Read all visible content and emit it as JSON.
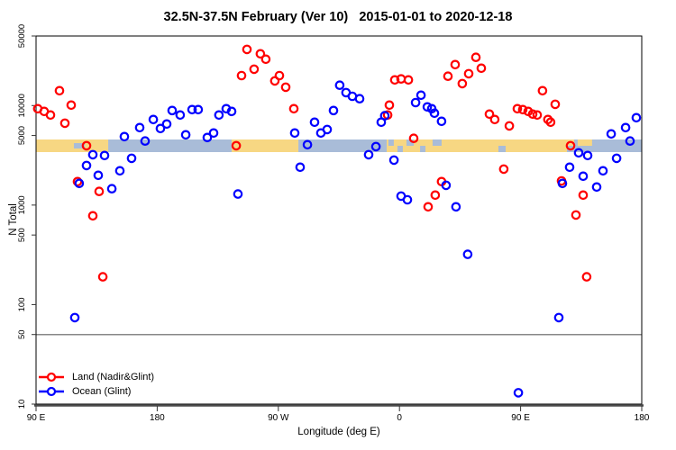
{
  "figure": {
    "title": "32.5N-37.5N February (Ver 10)   2015-01-01 to 2020-12-18"
  },
  "colors": {
    "land_series": "#ff0000",
    "ocean_series": "#0000ff",
    "band_land": "#f7d783",
    "band_ocean": "#a9bcd8",
    "ref_line": "#878787",
    "axis_heavy": "#4a4a4a",
    "frame": "#000000",
    "tick": "#333333"
  },
  "chart_data": {
    "type": "scatter",
    "title": "32.5N-37.5N February (Ver 10)   2015-01-01 to 2020-12-18",
    "xlabel": "Longitude (deg E)",
    "ylabel": "N Total",
    "y_scale": "log",
    "y_range": [
      10,
      50000
    ],
    "x_range_deg_e": [
      90,
      540
    ],
    "grid": "off",
    "reference_line": 50,
    "x_ticks": [
      {
        "label": "90 E",
        "lon": 90
      },
      {
        "label": "180",
        "lon": 180
      },
      {
        "label": "90 W",
        "lon": 270
      },
      {
        "label": "0",
        "lon": 360
      },
      {
        "label": "90 E",
        "lon": 450
      },
      {
        "label": "180",
        "lon": 540
      }
    ],
    "y_ticks": [
      {
        "label": "50000",
        "value": 50000
      },
      {
        "label": "10000",
        "value": 10000
      },
      {
        "label": "5000",
        "value": 5000
      },
      {
        "label": "1000",
        "value": 1000
      },
      {
        "label": "500",
        "value": 500
      },
      {
        "label": "100",
        "value": 100
      },
      {
        "label": "50",
        "value": 50
      },
      {
        "label": "10",
        "value": 10
      }
    ],
    "legend": [
      {
        "label": "Land (Nadir&Glint)",
        "color": "#ff0000"
      },
      {
        "label": "Ocean (Glint)",
        "color": "#0000ff"
      }
    ],
    "series": [
      {
        "name": "Land (Nadir&Glint)",
        "color": "#ff0000",
        "points": [
          [
            107.4,
            14100
          ],
          [
            116.1,
            10100
          ],
          [
            91.3,
            9290
          ],
          [
            96.0,
            8730
          ],
          [
            100.7,
            8040
          ],
          [
            111.4,
            6650
          ],
          [
            127.5,
            3950
          ],
          [
            120.8,
            1720
          ],
          [
            136.9,
            1370
          ],
          [
            132.2,
            780
          ],
          [
            139.6,
            190
          ],
          [
            238.7,
            3950
          ],
          [
            246.7,
            36700
          ],
          [
            256.7,
            33100
          ],
          [
            260.7,
            29200
          ],
          [
            252.0,
            23200
          ],
          [
            242.7,
            20000
          ],
          [
            270.8,
            20000
          ],
          [
            267.4,
            17700
          ],
          [
            275.5,
            15300
          ],
          [
            281.5,
            9290
          ],
          [
            352.5,
            10100
          ],
          [
            351.2,
            8040
          ],
          [
            356.5,
            18100
          ],
          [
            361.2,
            18500
          ],
          [
            366.6,
            18100
          ],
          [
            370.6,
            4680
          ],
          [
            396.0,
            19700
          ],
          [
            401.4,
            25800
          ],
          [
            406.7,
            16600
          ],
          [
            411.4,
            20900
          ],
          [
            416.8,
            30500
          ],
          [
            420.8,
            23700
          ],
          [
            426.8,
            8200
          ],
          [
            430.8,
            7240
          ],
          [
            441.6,
            6250
          ],
          [
            447.6,
            9290
          ],
          [
            451.6,
            9100
          ],
          [
            455.6,
            8730
          ],
          [
            459.0,
            8200
          ],
          [
            462.3,
            8040
          ],
          [
            466.3,
            14100
          ],
          [
            470.3,
            7240
          ],
          [
            472.3,
            6800
          ],
          [
            475.7,
            10300
          ],
          [
            437.5,
            2300
          ],
          [
            480.4,
            1750
          ],
          [
            487.1,
            3950
          ],
          [
            496.5,
            1260
          ],
          [
            491.1,
            795
          ],
          [
            499.1,
            190
          ],
          [
            381.3,
            960
          ],
          [
            386.6,
            1260
          ],
          [
            391.3,
            1720
          ]
        ]
      },
      {
        "name": "Ocean (Glint)",
        "color": "#0000ff",
        "points": [
          [
            122.1,
            1650
          ],
          [
            127.5,
            2500
          ],
          [
            132.2,
            3210
          ],
          [
            140.9,
            3150
          ],
          [
            136.2,
            1990
          ],
          [
            146.3,
            1460
          ],
          [
            152.3,
            2210
          ],
          [
            161.0,
            2950
          ],
          [
            155.6,
            4870
          ],
          [
            167.0,
            6000
          ],
          [
            171.0,
            4400
          ],
          [
            177.1,
            7240
          ],
          [
            182.4,
            5880
          ],
          [
            187.1,
            6520
          ],
          [
            191.1,
            8910
          ],
          [
            197.1,
            8040
          ],
          [
            201.2,
            5080
          ],
          [
            205.9,
            9100
          ],
          [
            210.5,
            9100
          ],
          [
            225.9,
            8040
          ],
          [
            231.3,
            9290
          ],
          [
            235.3,
            8730
          ],
          [
            217.2,
            4770
          ],
          [
            221.9,
            5300
          ],
          [
            240.0,
            1290
          ],
          [
            282.2,
            5300
          ],
          [
            291.6,
            4040
          ],
          [
            286.2,
            2400
          ],
          [
            296.9,
            6800
          ],
          [
            301.6,
            5300
          ],
          [
            306.3,
            5750
          ],
          [
            311.0,
            8910
          ],
          [
            315.6,
            16000
          ],
          [
            320.3,
            13500
          ],
          [
            325.0,
            12400
          ],
          [
            330.4,
            11700
          ],
          [
            349.1,
            7900
          ],
          [
            346.5,
            6800
          ],
          [
            342.5,
            3870
          ],
          [
            337.1,
            3210
          ],
          [
            355.9,
            2830
          ],
          [
            372.0,
            10700
          ],
          [
            376.0,
            12700
          ],
          [
            380.7,
            9690
          ],
          [
            384.0,
            9290
          ],
          [
            386.0,
            8370
          ],
          [
            391.3,
            6950
          ],
          [
            361.2,
            1230
          ],
          [
            365.9,
            1130
          ],
          [
            394.6,
            1580
          ],
          [
            402.0,
            960
          ],
          [
            410.7,
            320
          ],
          [
            118.8,
            74
          ],
          [
            448.3,
            13
          ],
          [
            478.4,
            74
          ],
          [
            481.1,
            1650
          ],
          [
            486.4,
            2400
          ],
          [
            493.1,
            3350
          ],
          [
            496.5,
            1950
          ],
          [
            499.8,
            3150
          ],
          [
            506.5,
            1520
          ],
          [
            511.2,
            2210
          ],
          [
            517.3,
            5190
          ],
          [
            521.3,
            2950
          ],
          [
            528.0,
            6000
          ],
          [
            531.3,
            4400
          ],
          [
            536.0,
            7550
          ]
        ]
      }
    ],
    "map_band": {
      "description": "land/ocean map strip along the 32.5N-37.5N latitude belt",
      "base_segments": [
        {
          "type": "land",
          "from": 90.0,
          "to": 143.6
        },
        {
          "type": "ocean",
          "from": 143.6,
          "to": 235.3
        },
        {
          "type": "land",
          "from": 235.3,
          "to": 284.9
        },
        {
          "type": "ocean",
          "from": 284.9,
          "to": 350.5
        },
        {
          "type": "land",
          "from": 350.5,
          "to": 484.4
        },
        {
          "type": "ocean",
          "from": 484.4,
          "to": 540.0
        }
      ],
      "patches": [
        {
          "type": "ocean",
          "from": 118.1,
          "to": 126.2,
          "part": "mid"
        },
        {
          "type": "ocean",
          "from": 351.8,
          "to": 355.8,
          "part": "top"
        },
        {
          "type": "ocean",
          "from": 358.5,
          "to": 362.5,
          "part": "bottom"
        },
        {
          "type": "ocean",
          "from": 365.2,
          "to": 370.6,
          "part": "top"
        },
        {
          "type": "ocean",
          "from": 375.3,
          "to": 379.3,
          "part": "bottom"
        },
        {
          "type": "ocean",
          "from": 384.6,
          "to": 391.3,
          "part": "top"
        },
        {
          "type": "ocean",
          "from": 433.5,
          "to": 438.9,
          "part": "bottom"
        },
        {
          "type": "land",
          "from": 484.4,
          "to": 489.8,
          "part": "top"
        },
        {
          "type": "land",
          "from": 492.4,
          "to": 503.1,
          "part": "top"
        }
      ]
    }
  }
}
